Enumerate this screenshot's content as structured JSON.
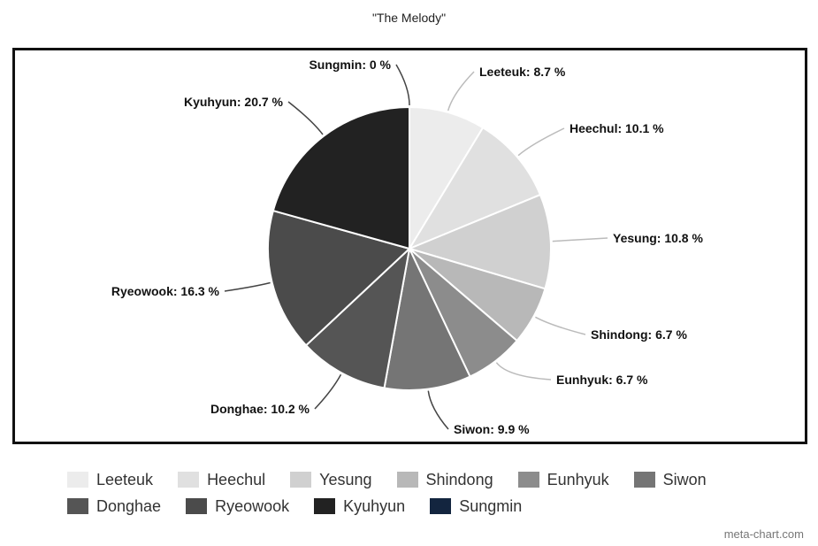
{
  "chart_data": {
    "type": "pie",
    "title": "\"The Melody\"",
    "slices": [
      {
        "name": "Leeteuk",
        "value": 8.7,
        "label": "Leeteuk: 8.7 %",
        "color": "#ececec"
      },
      {
        "name": "Heechul",
        "value": 10.1,
        "label": "Heechul: 10.1 %",
        "color": "#e0e0e0"
      },
      {
        "name": "Yesung",
        "value": 10.8,
        "label": "Yesung: 10.8 %",
        "color": "#d0d0d0"
      },
      {
        "name": "Shindong",
        "value": 6.7,
        "label": "Shindong: 6.7 %",
        "color": "#b8b8b8"
      },
      {
        "name": "Eunhyuk",
        "value": 6.7,
        "label": "Eunhyuk: 6.7 %",
        "color": "#8c8c8c"
      },
      {
        "name": "Siwon",
        "value": 9.9,
        "label": "Siwon: 9.9 %",
        "color": "#757575"
      },
      {
        "name": "Donghae",
        "value": 10.2,
        "label": "Donghae: 10.2 %",
        "color": "#555555"
      },
      {
        "name": "Ryeowook",
        "value": 16.3,
        "label": "Ryeowook: 16.3 %",
        "color": "#4b4b4b"
      },
      {
        "name": "Kyuhyun",
        "value": 20.7,
        "label": "Kyuhyun: 20.7 %",
        "color": "#222222"
      },
      {
        "name": "Sungmin",
        "value": 0,
        "label": "Sungmin: 0 %",
        "color": "#13253f"
      }
    ],
    "legend_placement": "bottom"
  },
  "watermark": "meta-chart.com"
}
